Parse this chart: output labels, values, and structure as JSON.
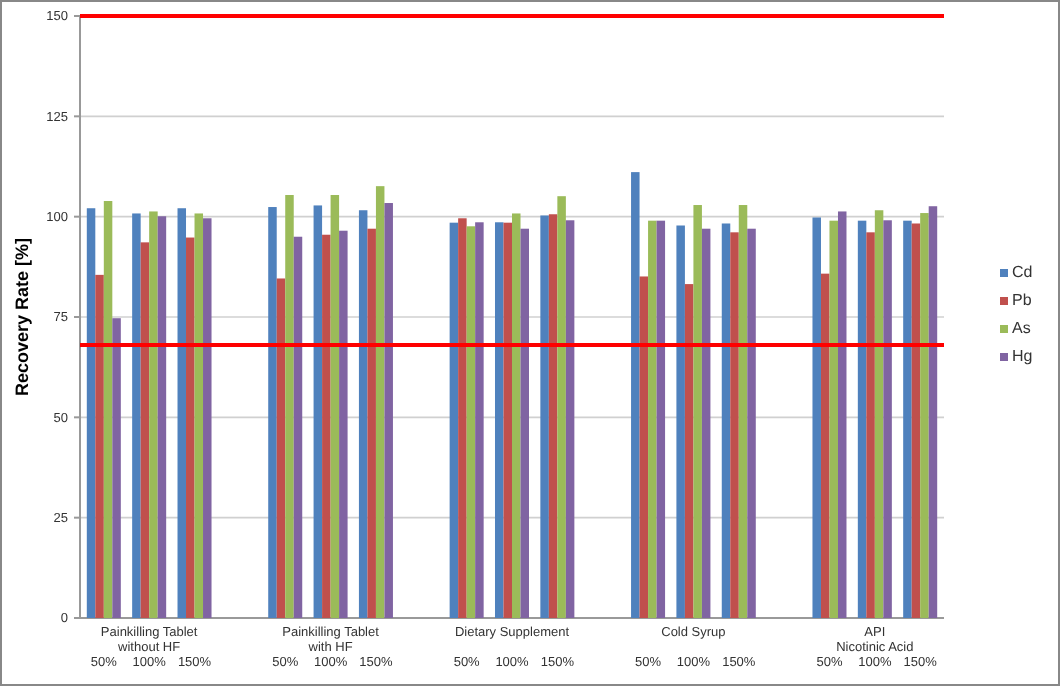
{
  "chart_data": {
    "type": "bar",
    "ylabel": "Recovery Rate [%]",
    "categories": [
      "50%",
      "100%",
      "150%",
      null,
      "50%",
      "100%",
      "150%",
      null,
      "50%",
      "100%",
      "150%",
      null,
      "50%",
      "100%",
      "150%",
      null,
      "50%",
      "100%",
      "150%"
    ],
    "annotations": [
      "Painkilling Tablet\nwithout HF",
      "Painkilling Tablet\nwith HF",
      "Dietary Supplement",
      "Cold Syrup",
      "API\nNicotinic Acid"
    ],
    "series": [
      {
        "name": "Cd",
        "color": "#4f81bd",
        "values": [
          102.1,
          100.8,
          102.1,
          null,
          102.4,
          102.8,
          101.6,
          null,
          98.5,
          98.6,
          100.3,
          null,
          111.1,
          97.8,
          98.3,
          null,
          99.8,
          99.0,
          99.0
        ]
      },
      {
        "name": "Pb",
        "color": "#c0504d",
        "values": [
          85.5,
          93.6,
          94.8,
          null,
          84.6,
          95.5,
          97.0,
          null,
          99.6,
          98.5,
          100.6,
          null,
          85.1,
          83.2,
          96.1,
          null,
          85.8,
          96.1,
          98.3
        ]
      },
      {
        "name": "As",
        "color": "#9bbb59",
        "values": [
          103.9,
          101.3,
          100.8,
          null,
          105.4,
          105.4,
          107.6,
          null,
          97.6,
          100.8,
          105.1,
          null,
          99.0,
          102.9,
          102.9,
          null,
          99.0,
          101.6,
          100.9
        ]
      },
      {
        "name": "Hg",
        "color": "#8064a2",
        "values": [
          74.7,
          100.1,
          99.6,
          null,
          95.0,
          96.5,
          103.4,
          null,
          98.6,
          97.0,
          99.1,
          null,
          99.0,
          97.0,
          97.0,
          null,
          101.3,
          99.1,
          102.6
        ]
      }
    ],
    "ylim": [
      0,
      150
    ],
    "yticks": [
      0,
      25,
      50,
      75,
      100,
      125,
      150
    ],
    "grid": "y",
    "legend": "right",
    "ref_lines": [
      {
        "axis": "y",
        "value": 150,
        "color": "#ff0000"
      },
      {
        "axis": "y",
        "value": 68,
        "color": "#ff0000"
      }
    ]
  }
}
